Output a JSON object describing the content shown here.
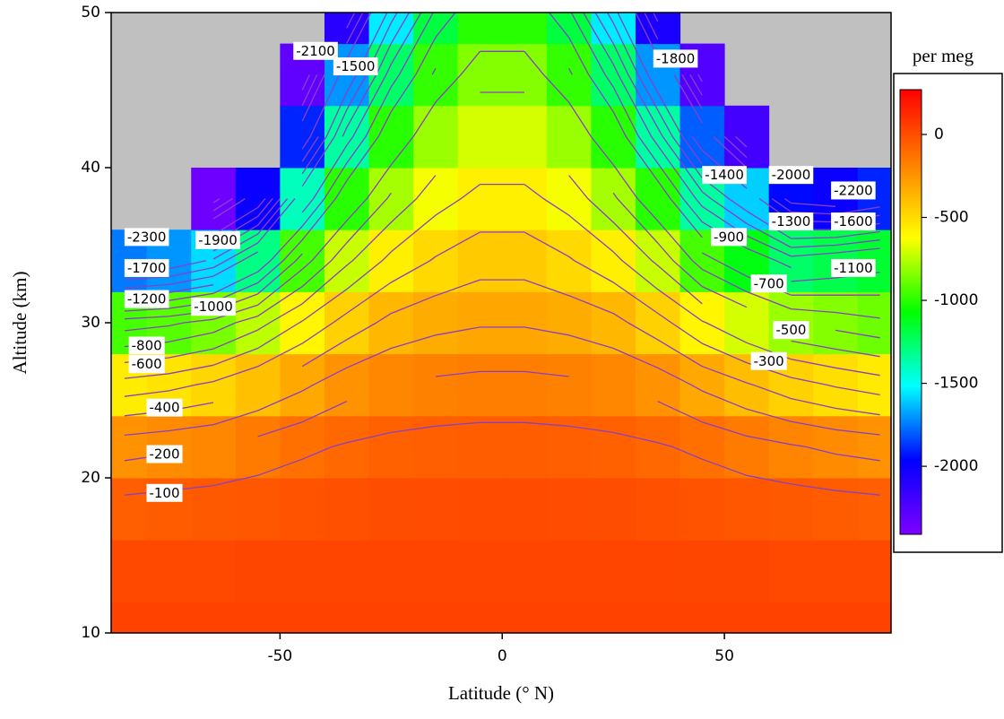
{
  "chart_data": {
    "type": "heatmap",
    "xlabel": "Latitude (° N)",
    "ylabel": "Altitude (km)",
    "x": [
      -85,
      -75,
      -65,
      -55,
      -45,
      -35,
      -25,
      -15,
      -5,
      5,
      15,
      25,
      35,
      45,
      55,
      65,
      75,
      85
    ],
    "y": [
      10,
      14,
      18,
      22,
      26,
      30,
      34,
      38,
      42,
      46,
      50
    ],
    "z": [
      [
        40,
        40,
        40,
        40,
        40,
        40,
        40,
        40,
        40,
        40,
        40,
        40,
        40,
        40,
        40,
        40,
        40,
        40
      ],
      [
        20,
        20,
        20,
        25,
        25,
        28,
        30,
        30,
        30,
        30,
        30,
        30,
        28,
        25,
        25,
        20,
        20,
        20
      ],
      [
        -60,
        -50,
        -40,
        -30,
        -20,
        -10,
        0,
        5,
        10,
        10,
        5,
        0,
        -10,
        -20,
        -30,
        -40,
        -50,
        -60
      ],
      [
        -240,
        -220,
        -200,
        -160,
        -120,
        -90,
        -70,
        -60,
        -55,
        -55,
        -60,
        -70,
        -90,
        -120,
        -160,
        -190,
        -220,
        -240
      ],
      [
        -560,
        -530,
        -480,
        -400,
        -320,
        -240,
        -200,
        -180,
        -170,
        -170,
        -180,
        -200,
        -240,
        -320,
        -390,
        -460,
        -510,
        -550
      ],
      [
        -950,
        -920,
        -860,
        -740,
        -590,
        -460,
        -370,
        -330,
        -310,
        -310,
        -330,
        -370,
        -460,
        -590,
        -700,
        -800,
        -840,
        -880
      ],
      [
        -1750,
        -1700,
        -1580,
        -1300,
        -950,
        -720,
        -570,
        -490,
        -440,
        -440,
        -490,
        -570,
        -720,
        -950,
        -1100,
        -1250,
        -1200,
        -1150
      ],
      [
        null,
        null,
        -2350,
        -2000,
        -1400,
        -1000,
        -780,
        -640,
        -570,
        -570,
        -640,
        -780,
        -1000,
        -1350,
        -1600,
        -1950,
        -2000,
        -1900
      ],
      [
        null,
        null,
        null,
        null,
        -1900,
        -1350,
        -1000,
        -800,
        -700,
        -700,
        -800,
        -1000,
        -1350,
        -1800,
        -2200,
        null,
        null,
        null
      ],
      [
        null,
        null,
        null,
        null,
        -2300,
        -1700,
        -1250,
        -980,
        -840,
        -840,
        -980,
        -1250,
        -1700,
        -2250,
        null,
        null,
        null,
        null
      ],
      [
        null,
        null,
        null,
        null,
        null,
        -2100,
        -1550,
        -1180,
        -1000,
        -1000,
        -1180,
        -1550,
        -2050,
        null,
        null,
        null,
        null,
        null
      ]
    ],
    "xlim": [
      -88,
      87.5
    ],
    "ylim": [
      10,
      50
    ],
    "xticks": [
      -50,
      0,
      50
    ],
    "yticks": [
      10,
      20,
      30,
      40,
      50
    ],
    "missing_color": "#c0c0c0",
    "colorbar": {
      "title": "per meg",
      "clim": [
        -2410,
        270
      ],
      "ticks": [
        0,
        -500,
        -1000,
        -1500,
        -2000
      ],
      "colormap": [
        "#7f00ff",
        "#0000ff",
        "#00ffff",
        "#00ff00",
        "#ffff00",
        "#ff8000",
        "#ff0000"
      ]
    },
    "contours": {
      "color": "#8a3fc8",
      "levels": [
        -2300,
        -2200,
        -2100,
        -2000,
        -1900,
        -1800,
        -1700,
        -1600,
        -1500,
        -1400,
        -1300,
        -1200,
        -1100,
        -1000,
        -900,
        -800,
        -700,
        -600,
        -500,
        -400,
        -300,
        -200,
        -100
      ],
      "labels": [
        {
          "value": -2100,
          "x": -42,
          "y": 47.5
        },
        {
          "value": -1500,
          "x": -33,
          "y": 46.5
        },
        {
          "value": -1800,
          "x": 39,
          "y": 47
        },
        {
          "value": -1400,
          "x": 50,
          "y": 39.5
        },
        {
          "value": -2000,
          "x": 65,
          "y": 39.5
        },
        {
          "value": -2200,
          "x": 79,
          "y": 38.5
        },
        {
          "value": -1300,
          "x": 65,
          "y": 36.5
        },
        {
          "value": -1600,
          "x": 79,
          "y": 36.5
        },
        {
          "value": -900,
          "x": 51,
          "y": 35.5
        },
        {
          "value": -1100,
          "x": 79,
          "y": 33.5
        },
        {
          "value": -700,
          "x": 60,
          "y": 32.5
        },
        {
          "value": -500,
          "x": 65,
          "y": 29.5
        },
        {
          "value": -300,
          "x": 60,
          "y": 27.5
        },
        {
          "value": -2300,
          "x": -80,
          "y": 35.5
        },
        {
          "value": -1900,
          "x": -64,
          "y": 35.3
        },
        {
          "value": -1700,
          "x": -80,
          "y": 33.5
        },
        {
          "value": -1200,
          "x": -80,
          "y": 31.5
        },
        {
          "value": -1000,
          "x": -65,
          "y": 31
        },
        {
          "value": -800,
          "x": -80,
          "y": 28.5
        },
        {
          "value": -600,
          "x": -80,
          "y": 27.3
        },
        {
          "value": -400,
          "x": -76,
          "y": 24.5
        },
        {
          "value": -200,
          "x": -76,
          "y": 21.5
        },
        {
          "value": -100,
          "x": -76,
          "y": 19
        }
      ]
    }
  }
}
